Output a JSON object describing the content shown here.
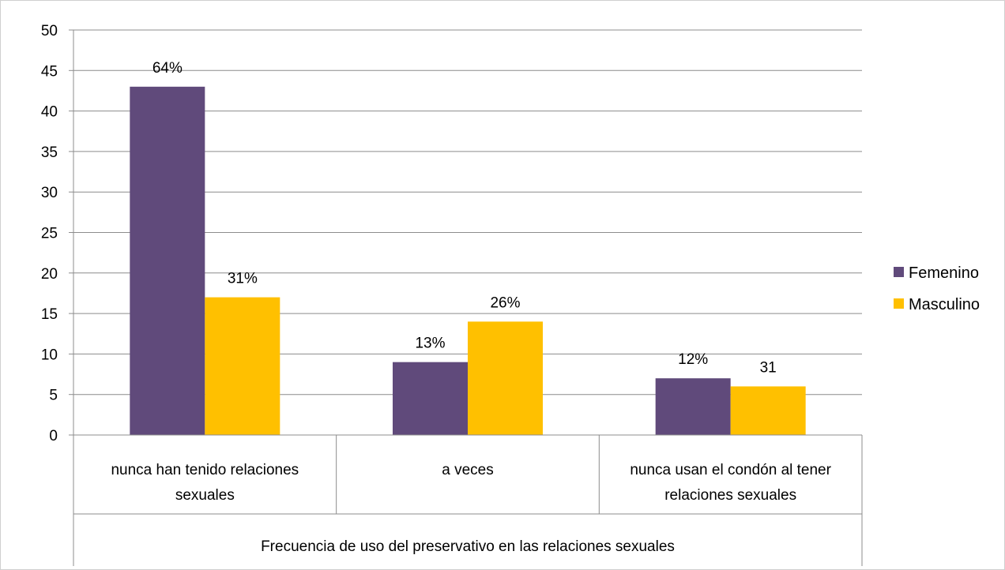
{
  "chart_data": {
    "type": "bar",
    "title": "",
    "xlabel": "Frecuencia de uso del preservativo en las relaciones sexuales",
    "ylabel": "",
    "ylim": [
      0,
      50
    ],
    "yticks": [
      0,
      5,
      10,
      15,
      20,
      25,
      30,
      35,
      40,
      45,
      50
    ],
    "grid": true,
    "legend_position": "right",
    "categories": [
      [
        "nunca han tenido relaciones",
        "sexuales"
      ],
      [
        "a veces"
      ],
      [
        "nunca usan el condón al tener",
        "relaciones sexuales"
      ]
    ],
    "series": [
      {
        "name": "Femenino",
        "color": "#604a7b",
        "values": [
          43,
          9,
          7
        ],
        "labels": [
          "64%",
          "13%",
          "12%"
        ]
      },
      {
        "name": "Masculino",
        "color": "#ffc000",
        "values": [
          17,
          14,
          6
        ],
        "labels": [
          "31%",
          "26%",
          "31"
        ]
      }
    ]
  }
}
